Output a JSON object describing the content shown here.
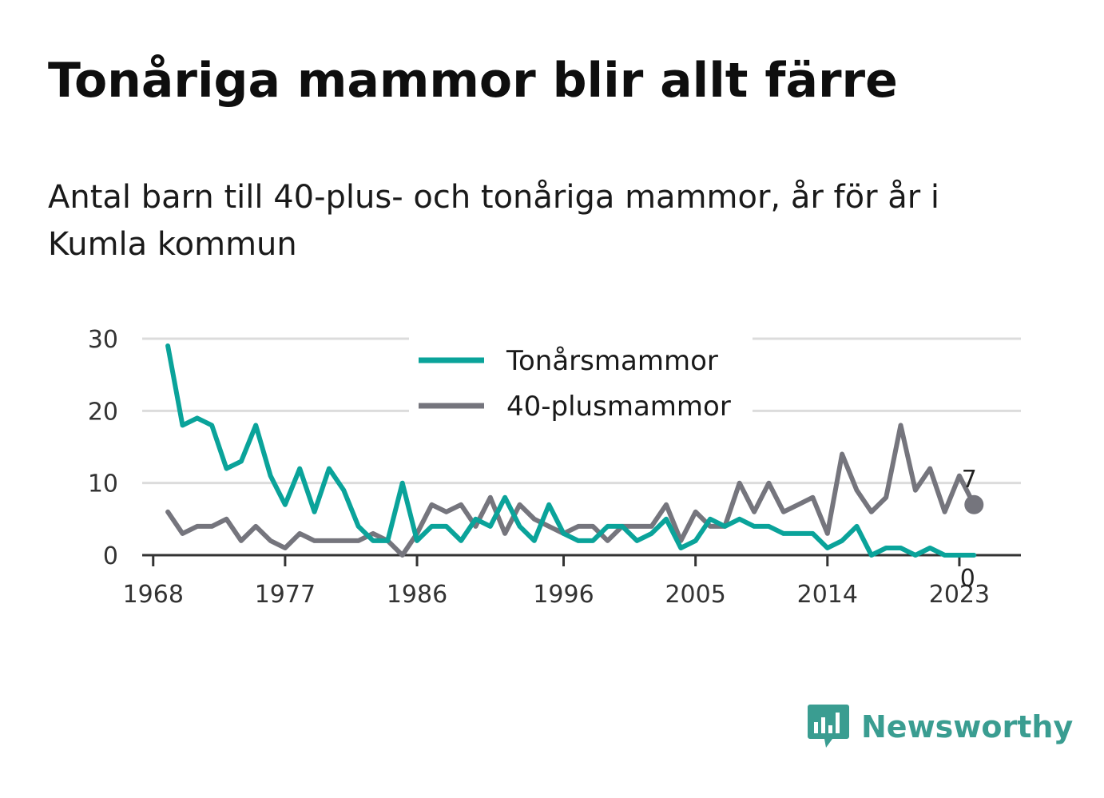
{
  "title": "Tonåriga mammor blir allt färre",
  "subtitle": "Antal barn till 40-plus- och tonåriga mammor, år för år i Kumla kommun",
  "brand": {
    "name": "Newsworthy",
    "color": "#3a9d91",
    "icon": "newsworthy-logo-icon"
  },
  "chart_data": {
    "type": "line",
    "title": "",
    "xlabel": "",
    "ylabel": "",
    "ylim": [
      0,
      30
    ],
    "xlim": [
      1967,
      2027
    ],
    "yticks": [
      0,
      10,
      20,
      30
    ],
    "xticks": [
      1968,
      1977,
      1986,
      1996,
      2005,
      2014,
      2023
    ],
    "grid": true,
    "legend_position": "top-center",
    "x": [
      1969,
      1970,
      1971,
      1972,
      1973,
      1974,
      1975,
      1976,
      1977,
      1978,
      1979,
      1980,
      1981,
      1982,
      1983,
      1984,
      1985,
      1986,
      1987,
      1988,
      1989,
      1990,
      1991,
      1992,
      1993,
      1994,
      1995,
      1996,
      1997,
      1998,
      1999,
      2000,
      2001,
      2002,
      2003,
      2004,
      2005,
      2006,
      2007,
      2008,
      2009,
      2010,
      2011,
      2012,
      2013,
      2014,
      2015,
      2016,
      2017,
      2018,
      2019,
      2020,
      2021,
      2022,
      2023,
      2024
    ],
    "series": [
      {
        "name": "Tonårsmammor",
        "color": "#0aa39a",
        "values": [
          29,
          18,
          19,
          18,
          12,
          13,
          18,
          11,
          7,
          12,
          6,
          12,
          9,
          4,
          2,
          2,
          10,
          2,
          4,
          4,
          2,
          5,
          4,
          8,
          4,
          2,
          7,
          3,
          2,
          2,
          4,
          4,
          2,
          3,
          5,
          1,
          2,
          5,
          4,
          5,
          4,
          4,
          3,
          3,
          3,
          1,
          2,
          4,
          0,
          1,
          1,
          0,
          1,
          0,
          0,
          0
        ],
        "end_label": "0"
      },
      {
        "name": "40-plusmammor",
        "color": "#75757d",
        "values": [
          6,
          3,
          4,
          4,
          5,
          2,
          4,
          2,
          1,
          3,
          2,
          2,
          2,
          2,
          3,
          2,
          0,
          3,
          7,
          6,
          7,
          4,
          8,
          3,
          7,
          5,
          4,
          3,
          4,
          4,
          2,
          4,
          4,
          4,
          7,
          2,
          6,
          4,
          4,
          10,
          6,
          10,
          6,
          7,
          8,
          3,
          14,
          9,
          6,
          8,
          18,
          9,
          12,
          6,
          11,
          7
        ],
        "end_label": "7"
      }
    ]
  }
}
